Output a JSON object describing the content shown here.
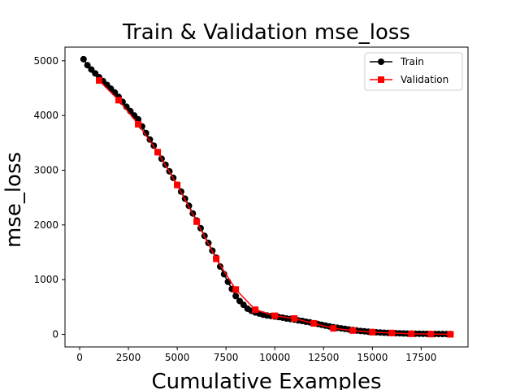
{
  "chart_data": {
    "type": "line",
    "title": "Train & Validation mse_loss",
    "xlabel": "Cumulative Examples",
    "ylabel": "mse_loss",
    "xlim": [
      -750,
      19900
    ],
    "ylim": [
      -230,
      5250
    ],
    "xticks": [
      0,
      2500,
      5000,
      7500,
      10000,
      12500,
      15000,
      17500
    ],
    "yticks": [
      0,
      1000,
      2000,
      3000,
      4000,
      5000
    ],
    "grid": false,
    "legend_position": "top-right",
    "series": [
      {
        "name": "Train",
        "color": "#000000",
        "marker": "circle",
        "x": [
          200,
          400,
          600,
          800,
          1000,
          1200,
          1400,
          1600,
          1800,
          2000,
          2200,
          2400,
          2600,
          2800,
          3000,
          3200,
          3400,
          3600,
          3800,
          4000,
          4200,
          4400,
          4600,
          4800,
          5000,
          5200,
          5400,
          5600,
          5800,
          6000,
          6200,
          6400,
          6600,
          6800,
          7000,
          7200,
          7400,
          7600,
          7800,
          8000,
          8200,
          8400,
          8600,
          8800,
          9000,
          9200,
          9400,
          9600,
          9800,
          10000,
          10200,
          10400,
          10600,
          10800,
          11000,
          11200,
          11400,
          11600,
          11800,
          12000,
          12200,
          12400,
          12600,
          12800,
          13000,
          13200,
          13400,
          13600,
          13800,
          14000,
          14200,
          14400,
          14600,
          14800,
          15000,
          15200,
          15400,
          15600,
          15800,
          16000,
          16200,
          16400,
          16600,
          16800,
          17000,
          17200,
          17400,
          17600,
          17800,
          18000,
          18200,
          18400,
          18600,
          18800,
          19000
        ],
        "values": [
          5030,
          4920,
          4840,
          4770,
          4700,
          4630,
          4560,
          4490,
          4420,
          4340,
          4250,
          4160,
          4080,
          4000,
          3930,
          3800,
          3680,
          3560,
          3450,
          3330,
          3210,
          3100,
          2980,
          2860,
          2730,
          2610,
          2480,
          2350,
          2210,
          2080,
          1940,
          1800,
          1670,
          1530,
          1400,
          1240,
          1100,
          960,
          830,
          700,
          610,
          540,
          470,
          430,
          400,
          380,
          360,
          345,
          335,
          325,
          315,
          305,
          290,
          280,
          270,
          255,
          245,
          230,
          220,
          205,
          190,
          175,
          160,
          145,
          130,
          120,
          110,
          100,
          90,
          80,
          70,
          62,
          55,
          48,
          42,
          38,
          34,
          30,
          27,
          24,
          21,
          19,
          17,
          15,
          13,
          12,
          11,
          10,
          9,
          8,
          8,
          7,
          6,
          6,
          5
        ]
      },
      {
        "name": "Validation",
        "color": "#ff0000",
        "marker": "square",
        "x": [
          1000,
          2000,
          3000,
          4000,
          5000,
          6000,
          7000,
          8000,
          9000,
          10000,
          11000,
          12000,
          13000,
          14000,
          15000,
          16000,
          17000,
          18000,
          19000
        ],
        "values": [
          4640,
          4280,
          3840,
          3330,
          2730,
          2060,
          1380,
          820,
          450,
          340,
          290,
          200,
          110,
          70,
          40,
          25,
          10,
          5,
          0
        ]
      }
    ]
  }
}
